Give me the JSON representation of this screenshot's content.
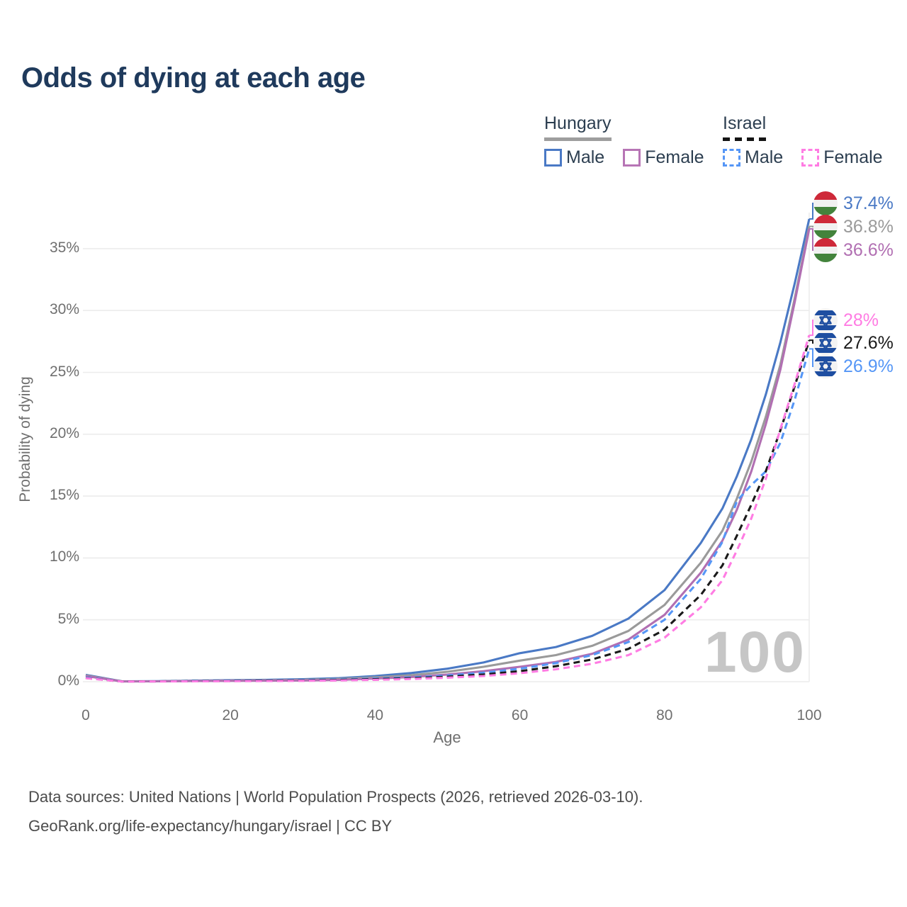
{
  "title": "Odds of dying at each age",
  "legend": {
    "hungary": {
      "label": "Hungary",
      "male": "Male",
      "female": "Female"
    },
    "israel": {
      "label": "Israel",
      "male": "Male",
      "female": "Female"
    }
  },
  "axes": {
    "y_title": "Probability of dying",
    "x_title": "Age",
    "y_ticks": [
      "0%",
      "5%",
      "10%",
      "15%",
      "20%",
      "25%",
      "30%",
      "35%"
    ],
    "x_ticks": [
      "0",
      "20",
      "40",
      "60",
      "80",
      "100"
    ]
  },
  "hover_age": "100",
  "end_labels": {
    "hungary": [
      {
        "value": "37.4%",
        "series": "Hungary male",
        "color": "#4a79c5"
      },
      {
        "value": "36.8%",
        "series": "Hungary total",
        "color": "#9a9a9a"
      },
      {
        "value": "36.6%",
        "series": "Hungary female",
        "color": "#b16fb2"
      }
    ],
    "israel": [
      {
        "value": "28%",
        "series": "Israel female",
        "color": "#ff7ce3"
      },
      {
        "value": "27.6%",
        "series": "Israel total",
        "color": "#1a1a1a"
      },
      {
        "value": "26.9%",
        "series": "Israel male",
        "color": "#5596f6"
      }
    ]
  },
  "footer": {
    "line1": "Data sources: United Nations | World Population Prospects (2026, retrieved 2026-03-10).",
    "line2": "GeoRank.org/life-expectancy/hungary/israel | CC BY"
  },
  "colors": {
    "title": "#1f3a5c",
    "gridline": "#ececec",
    "axis_text": "#6f6f6f",
    "watermark": "#c6c6c6",
    "hungary_male": "#4a79c5",
    "hungary_total": "#9a9a9a",
    "hungary_female": "#b16fb2",
    "israel_male": "#5596f6",
    "israel_total": "#1a1a1a",
    "israel_female": "#ff7ce3"
  },
  "chart_data": {
    "type": "line",
    "title": "Odds of dying at each age",
    "xlabel": "Age",
    "ylabel": "Probability of dying",
    "xlim": [
      0,
      100
    ],
    "ylim_pct": [
      0,
      39
    ],
    "grid": "horizontal",
    "legend_position": "top-right",
    "hover_age": 100,
    "y_grid_pcts": [
      0,
      5,
      10,
      15,
      20,
      25,
      30,
      35
    ],
    "x_grid_ages": [
      0,
      20,
      40,
      60,
      80,
      100
    ],
    "ages": [
      0,
      5,
      10,
      15,
      20,
      25,
      30,
      35,
      40,
      45,
      50,
      55,
      60,
      65,
      70,
      75,
      80,
      85,
      88,
      90,
      92,
      94,
      96,
      98,
      100
    ],
    "series": [
      {
        "name": "Hungary male",
        "style": "solid",
        "color": "#4a79c5",
        "end_value": "37.4%",
        "values_pct": [
          0.55,
          0.03,
          0.04,
          0.08,
          0.12,
          0.15,
          0.2,
          0.28,
          0.45,
          0.7,
          1.05,
          1.55,
          2.3,
          2.8,
          3.7,
          5.1,
          7.4,
          11.2,
          14.0,
          16.6,
          19.6,
          23.2,
          27.4,
          32.2,
          37.4
        ]
      },
      {
        "name": "Hungary total",
        "style": "solid",
        "color": "#9a9a9a",
        "end_value": "36.8%",
        "values_pct": [
          0.5,
          0.03,
          0.03,
          0.06,
          0.09,
          0.11,
          0.15,
          0.22,
          0.35,
          0.52,
          0.8,
          1.2,
          1.7,
          2.15,
          2.9,
          4.1,
          6.2,
          9.6,
          12.2,
          14.8,
          17.8,
          21.4,
          25.6,
          31.0,
          36.8
        ]
      },
      {
        "name": "Hungary female",
        "style": "solid",
        "color": "#b16fb2",
        "end_value": "36.6%",
        "values_pct": [
          0.45,
          0.02,
          0.03,
          0.05,
          0.07,
          0.08,
          0.1,
          0.15,
          0.25,
          0.38,
          0.58,
          0.85,
          1.2,
          1.6,
          2.25,
          3.4,
          5.4,
          8.8,
          11.4,
          13.9,
          17.0,
          20.8,
          25.2,
          30.7,
          36.6
        ]
      },
      {
        "name": "Israel male",
        "style": "dashed",
        "color": "#5596f6",
        "end_value": "26.9%",
        "values_pct": [
          0.35,
          0.02,
          0.03,
          0.05,
          0.08,
          0.1,
          0.13,
          0.18,
          0.25,
          0.35,
          0.5,
          0.72,
          1.05,
          1.5,
          2.15,
          3.2,
          5.0,
          8.3,
          11.3,
          14.6,
          15.9,
          17.0,
          19.3,
          22.8,
          26.9
        ]
      },
      {
        "name": "Israel total",
        "style": "dashed",
        "color": "#1a1a1a",
        "end_value": "27.6%",
        "values_pct": [
          0.3,
          0.02,
          0.03,
          0.04,
          0.06,
          0.08,
          0.1,
          0.14,
          0.2,
          0.28,
          0.4,
          0.58,
          0.85,
          1.25,
          1.8,
          2.65,
          4.2,
          7.0,
          9.4,
          11.8,
          14.3,
          17.0,
          20.3,
          23.9,
          27.6
        ]
      },
      {
        "name": "Israel female",
        "style": "dashed",
        "color": "#ff7ce3",
        "end_value": "28%",
        "values_pct": [
          0.28,
          0.01,
          0.02,
          0.03,
          0.04,
          0.05,
          0.07,
          0.1,
          0.15,
          0.22,
          0.32,
          0.46,
          0.68,
          1.0,
          1.45,
          2.15,
          3.55,
          6.0,
          8.2,
          10.6,
          13.2,
          16.4,
          20.4,
          24.1,
          28.0
        ]
      }
    ]
  }
}
